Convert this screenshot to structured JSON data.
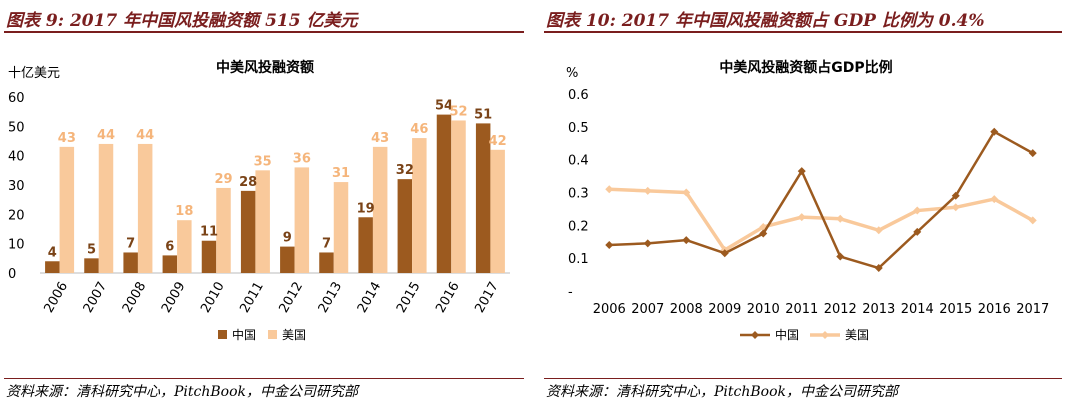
{
  "left_panel": {
    "title": "图表 9: 2017 年中国风投融资额 515 亿美元",
    "source": "资料来源：清科研究中心，PitchBook，中金公司研究部"
  },
  "right_panel": {
    "title": "图表 10: 2017 年中国风投融资额占 GDP 比例为 0.4%",
    "source": "资料来源：清科研究中心，PitchBook，中金公司研究部"
  },
  "colors": {
    "china": "#9c5a1f",
    "usa": "#f9c99b",
    "accent": "#7a1e1e"
  },
  "chart_data": [
    {
      "type": "bar",
      "title": "中美风投融资额",
      "ylabel": "十亿美元",
      "xlabel": "",
      "ylim": [
        0,
        60
      ],
      "yticks": [
        0,
        10,
        20,
        30,
        40,
        50,
        60
      ],
      "grid": false,
      "legend": "bottom-center",
      "categories": [
        "2006",
        "2007",
        "2008",
        "2009",
        "2010",
        "2011",
        "2012",
        "2013",
        "2014",
        "2015",
        "2016",
        "2017"
      ],
      "series": [
        {
          "name": "中国",
          "values": [
            4,
            5,
            7,
            6,
            11,
            28,
            9,
            7,
            19,
            32,
            54,
            51
          ]
        },
        {
          "name": "美国",
          "values": [
            43,
            44,
            44,
            18,
            29,
            35,
            36,
            31,
            43,
            46,
            52,
            42
          ]
        }
      ],
      "data_labels": {
        "中国": [
          "4",
          "5",
          "7",
          "6",
          "11",
          "28",
          "9",
          "7",
          "19",
          "32",
          "54",
          "51"
        ],
        "美国": [
          "43",
          "44",
          "44",
          "18",
          "29",
          "35",
          "36",
          "31",
          "43",
          "46",
          "52",
          "42"
        ]
      }
    },
    {
      "type": "line",
      "title": "中美风投融资额占GDP比例",
      "ylabel": "%",
      "xlabel": "",
      "ylim": [
        0,
        0.6
      ],
      "yticks": [
        0,
        0.1,
        0.2,
        0.3,
        0.4,
        0.5,
        0.6
      ],
      "ytick_labels": [
        "-",
        "0.1",
        "0.2",
        "0.3",
        "0.4",
        "0.5",
        "0.6"
      ],
      "grid": false,
      "legend": "bottom-center",
      "categories": [
        "2006",
        "2007",
        "2008",
        "2009",
        "2010",
        "2011",
        "2012",
        "2013",
        "2014",
        "2015",
        "2016",
        "2017"
      ],
      "series": [
        {
          "name": "中国",
          "values": [
            0.14,
            0.145,
            0.155,
            0.115,
            0.175,
            0.365,
            0.105,
            0.07,
            0.18,
            0.29,
            0.485,
            0.42
          ]
        },
        {
          "name": "美国",
          "values": [
            0.31,
            0.305,
            0.3,
            0.125,
            0.195,
            0.225,
            0.22,
            0.185,
            0.245,
            0.255,
            0.28,
            0.215
          ]
        }
      ]
    }
  ]
}
